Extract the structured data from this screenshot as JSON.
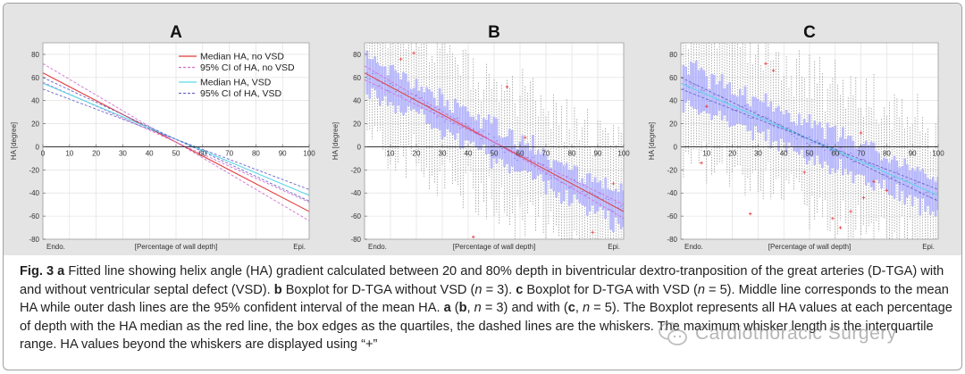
{
  "caption": {
    "fig_label": "Fig. 3",
    "parts": [
      {
        "bold": true,
        "text": "a"
      },
      {
        "bold": false,
        "text": " Fitted line showing helix angle (HA) gradient calculated between 20 and 80% depth in biventricular dextro-tranposition of the great arteries (D-TGA) with and without ventricular septal defect (VSD). "
      },
      {
        "bold": true,
        "text": "b"
      },
      {
        "bold": false,
        "text": " Boxplot for D-TGA without VSD ("
      },
      {
        "bold": false,
        "italic": true,
        "text": "n"
      },
      {
        "bold": false,
        "text": " = 3). "
      },
      {
        "bold": true,
        "text": "c"
      },
      {
        "bold": false,
        "text": " Boxplot for D-TGA with VSD ("
      },
      {
        "bold": false,
        "italic": true,
        "text": "n"
      },
      {
        "bold": false,
        "text": " = 5). Middle line corresponds to the mean HA while outer dash lines are the 95% confident interval of the mean HA. "
      },
      {
        "bold": true,
        "text": "a"
      },
      {
        "bold": false,
        "text": " ("
      },
      {
        "bold": true,
        "text": "b"
      },
      {
        "bold": false,
        "text": ", "
      },
      {
        "bold": false,
        "italic": true,
        "text": "n"
      },
      {
        "bold": false,
        "text": " = 3) and with ("
      },
      {
        "bold": true,
        "text": "c"
      },
      {
        "bold": false,
        "text": ", "
      },
      {
        "bold": false,
        "italic": true,
        "text": "n"
      },
      {
        "bold": false,
        "text": " = 5). The Boxplot represents all HA values at each percentage of depth with the HA median as the red line, the box edges as the quartiles, the dashed lines are the whiskers. The maximum whisker length is the interquartile range. HA values beyond the whiskers are displayed using “+”"
      }
    ]
  },
  "watermark": {
    "text": "Cardiothoracic Surgery",
    "icon": "wechat-logo-icon"
  },
  "colors": {
    "background": "#e4e4e4",
    "median_no_vsd": "#e23a3a",
    "ci_no_vsd": "#d070d0",
    "median_vsd": "#5cd6e6",
    "ci_vsd": "#6a66c8",
    "box_fill": "#b6b6ff",
    "box_edge": "#8a8af0",
    "whisker": "#7a7a7a",
    "outlier": "#e33b3b",
    "axis": "#555555"
  },
  "chart_data": [
    {
      "panel": "A",
      "type": "line",
      "title": "A",
      "xlabel": "[Percentage of wall depth]",
      "ylabel": "HA [degree]",
      "xlim": [
        0,
        100
      ],
      "ylim": [
        -80,
        90
      ],
      "xticks": [
        0,
        10,
        20,
        30,
        40,
        50,
        60,
        70,
        80,
        90,
        100
      ],
      "yticks": [
        -80,
        -60,
        -40,
        -20,
        0,
        20,
        40,
        60,
        80
      ],
      "x_endpoint_labels": [
        "Endo.",
        "Epi."
      ],
      "grid": true,
      "legend": {
        "position": "top-right",
        "entries": [
          "Median HA, no VSD",
          "95% CI of HA, no VSD",
          "Median HA, VSD",
          "95% CI of HA, VSD"
        ]
      },
      "series": [
        {
          "name": "Median HA, no VSD",
          "style": "solid",
          "color_key": "median_no_vsd",
          "x": [
            0,
            100
          ],
          "y": [
            64,
            -56
          ]
        },
        {
          "name": "95% CI of HA, no VSD",
          "style": "dashed",
          "color_key": "ci_no_vsd",
          "x": [
            0,
            100
          ],
          "y": [
            72,
            -64
          ]
        },
        {
          "name": "95% CI of HA, no VSD",
          "style": "dashed",
          "color_key": "ci_no_vsd",
          "x": [
            0,
            100
          ],
          "y": [
            56,
            -48
          ]
        },
        {
          "name": "Median HA, VSD",
          "style": "solid",
          "color_key": "median_vsd",
          "x": [
            0,
            100
          ],
          "y": [
            55,
            -42
          ]
        },
        {
          "name": "95% CI of HA, VSD",
          "style": "dashed",
          "color_key": "ci_vsd",
          "x": [
            0,
            100
          ],
          "y": [
            60,
            -47
          ]
        },
        {
          "name": "95% CI of HA, VSD",
          "style": "dashed",
          "color_key": "ci_vsd",
          "x": [
            0,
            100
          ],
          "y": [
            50,
            -37
          ]
        }
      ]
    },
    {
      "panel": "B",
      "type": "box",
      "title": "B",
      "xlabel": "[Percentage of wall depth]",
      "ylabel": "HA [degree]",
      "xlim": [
        0,
        100
      ],
      "ylim": [
        -80,
        90
      ],
      "xticks": [
        10,
        20,
        30,
        40,
        50,
        60,
        70,
        80,
        90,
        100
      ],
      "yticks": [
        -80,
        -60,
        -40,
        -20,
        0,
        20,
        40,
        60,
        80
      ],
      "x_endpoint_labels": [
        "Endo.",
        "Epi."
      ],
      "grid": true,
      "trend_lines": [
        {
          "name": "median",
          "color_key": "median_no_vsd",
          "style": "solid",
          "x": [
            0,
            100
          ],
          "y": [
            64,
            -56
          ]
        },
        {
          "name": "ci",
          "color_key": "ci_no_vsd",
          "style": "dashed",
          "x": [
            0,
            100
          ],
          "y": [
            70,
            -62
          ]
        },
        {
          "name": "ci",
          "color_key": "ci_no_vsd",
          "style": "dashed",
          "x": [
            0,
            100
          ],
          "y": [
            58,
            -50
          ]
        }
      ],
      "box_model": {
        "start": 64,
        "slope": -1.2,
        "iqr": 28,
        "whisker": 40,
        "noise_seed": 11
      },
      "outliers": [
        [
          14,
          76
        ],
        [
          19,
          81
        ],
        [
          42,
          -78
        ],
        [
          55,
          52
        ],
        [
          62,
          8
        ],
        [
          88,
          -74
        ],
        [
          96,
          -32
        ]
      ]
    },
    {
      "panel": "C",
      "type": "box",
      "title": "C",
      "xlabel": "[Percentage of wall depth]",
      "ylabel": "HA [degree]",
      "xlim": [
        0,
        100
      ],
      "ylim": [
        -80,
        90
      ],
      "xticks": [
        10,
        20,
        30,
        40,
        50,
        60,
        70,
        80,
        90,
        100
      ],
      "yticks": [
        -80,
        -60,
        -40,
        -20,
        0,
        20,
        40,
        60,
        80
      ],
      "x_endpoint_labels": [
        "Endo.",
        "Epi."
      ],
      "grid": true,
      "trend_lines": [
        {
          "name": "median",
          "color_key": "median_vsd",
          "style": "solid",
          "x": [
            0,
            100
          ],
          "y": [
            55,
            -42
          ]
        },
        {
          "name": "ci",
          "color_key": "ci_vsd",
          "style": "dashed",
          "x": [
            0,
            100
          ],
          "y": [
            60,
            -47
          ]
        },
        {
          "name": "ci",
          "color_key": "ci_vsd",
          "style": "dashed",
          "x": [
            0,
            100
          ],
          "y": [
            50,
            -37
          ]
        }
      ],
      "box_model": {
        "start": 55,
        "slope": -0.97,
        "iqr": 30,
        "whisker": 42,
        "noise_seed": 23
      },
      "outliers": [
        [
          33,
          72
        ],
        [
          36,
          66
        ],
        [
          27,
          -58
        ],
        [
          59,
          -62
        ],
        [
          62,
          -70
        ],
        [
          66,
          -56
        ],
        [
          71,
          -44
        ],
        [
          75,
          -30
        ],
        [
          80,
          -38
        ],
        [
          48,
          -22
        ],
        [
          8,
          -14
        ],
        [
          10,
          35
        ],
        [
          70,
          12
        ]
      ]
    }
  ]
}
